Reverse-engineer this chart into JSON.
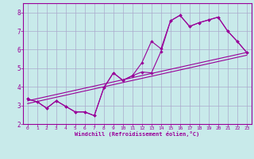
{
  "xlabel": "Windchill (Refroidissement éolien,°C)",
  "bg_color": "#c8eaea",
  "line_color": "#990099",
  "grid_color": "#aaaacc",
  "xlim": [
    -0.5,
    23.5
  ],
  "ylim": [
    2,
    8.5
  ],
  "xticks": [
    0,
    1,
    2,
    3,
    4,
    5,
    6,
    7,
    8,
    9,
    10,
    11,
    12,
    13,
    14,
    15,
    16,
    17,
    18,
    19,
    20,
    21,
    22,
    23
  ],
  "yticks": [
    2,
    3,
    4,
    5,
    6,
    7,
    8
  ],
  "series1_x": [
    0,
    1,
    2,
    3,
    4,
    5,
    6,
    7,
    8,
    9,
    10,
    11,
    12,
    13,
    14,
    15,
    16,
    17,
    18,
    19,
    20,
    21,
    22,
    23
  ],
  "series1_y": [
    3.35,
    3.2,
    2.85,
    3.25,
    2.95,
    2.65,
    2.65,
    2.45,
    3.95,
    4.75,
    4.35,
    4.6,
    4.8,
    4.75,
    5.9,
    7.55,
    7.85,
    7.25,
    7.45,
    7.6,
    7.75,
    7.0,
    6.45,
    5.85
  ],
  "series2_x": [
    0,
    1,
    2,
    3,
    4,
    5,
    6,
    7,
    8,
    9,
    10,
    11,
    12,
    13,
    14,
    15,
    16,
    17,
    18,
    19,
    20,
    21,
    22,
    23
  ],
  "series2_y": [
    3.35,
    3.2,
    2.85,
    3.25,
    2.95,
    2.65,
    2.65,
    2.45,
    3.95,
    4.75,
    4.35,
    4.6,
    5.3,
    6.45,
    6.05,
    7.55,
    7.85,
    7.25,
    7.45,
    7.6,
    7.75,
    7.0,
    6.45,
    5.85
  ],
  "trend1_x": [
    0,
    23
  ],
  "trend1_y": [
    3.25,
    5.85
  ],
  "trend2_x": [
    0,
    23
  ],
  "trend2_y": [
    3.1,
    5.7
  ]
}
